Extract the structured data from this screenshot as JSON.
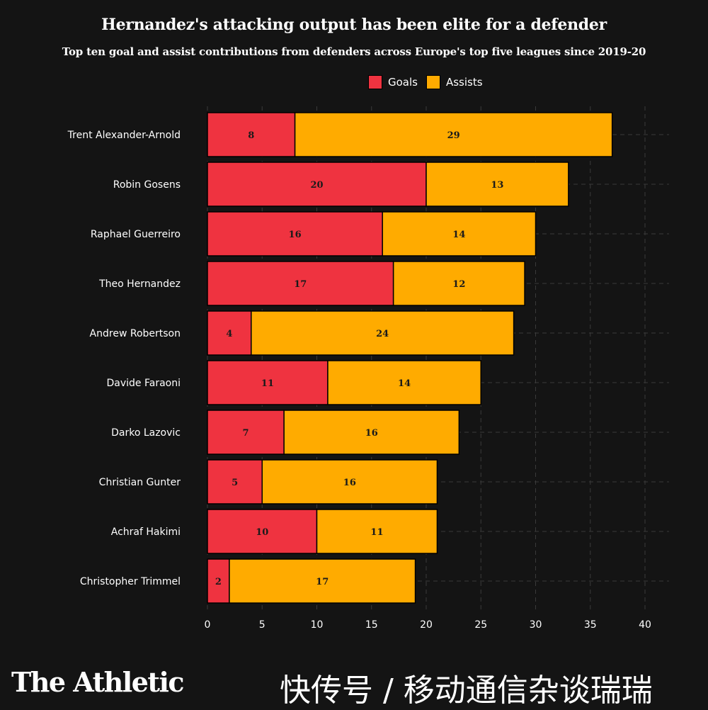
{
  "chart_data": {
    "type": "bar",
    "orientation": "horizontal",
    "stacked": true,
    "title": "Hernandez's attacking output has been elite for a defender",
    "subtitle": "Top ten goal and assist contributions from defenders across Europe's top five leagues since 2019-20",
    "categories": [
      "Trent Alexander-Arnold",
      "Robin Gosens",
      "Raphael Guerreiro",
      "Theo Hernandez",
      "Andrew Robertson",
      "Davide Faraoni",
      "Darko Lazovic",
      "Christian Gunter",
      "Achraf Hakimi",
      "Christopher Trimmel"
    ],
    "series": [
      {
        "name": "Goals",
        "color": "#ef3340",
        "values": [
          8,
          20,
          16,
          17,
          4,
          11,
          7,
          5,
          10,
          2
        ]
      },
      {
        "name": "Assists",
        "color": "#ffab00",
        "values": [
          29,
          13,
          14,
          12,
          24,
          14,
          16,
          16,
          11,
          17
        ]
      }
    ],
    "xlim": [
      0,
      40
    ],
    "xticks": [
      0,
      5,
      10,
      15,
      20,
      25,
      30,
      35,
      40
    ],
    "grid": true,
    "legend_position": "top"
  },
  "footer": {
    "brand": "The Athletic",
    "watermark": "快传号 / 移动通信杂谈瑞瑞"
  }
}
